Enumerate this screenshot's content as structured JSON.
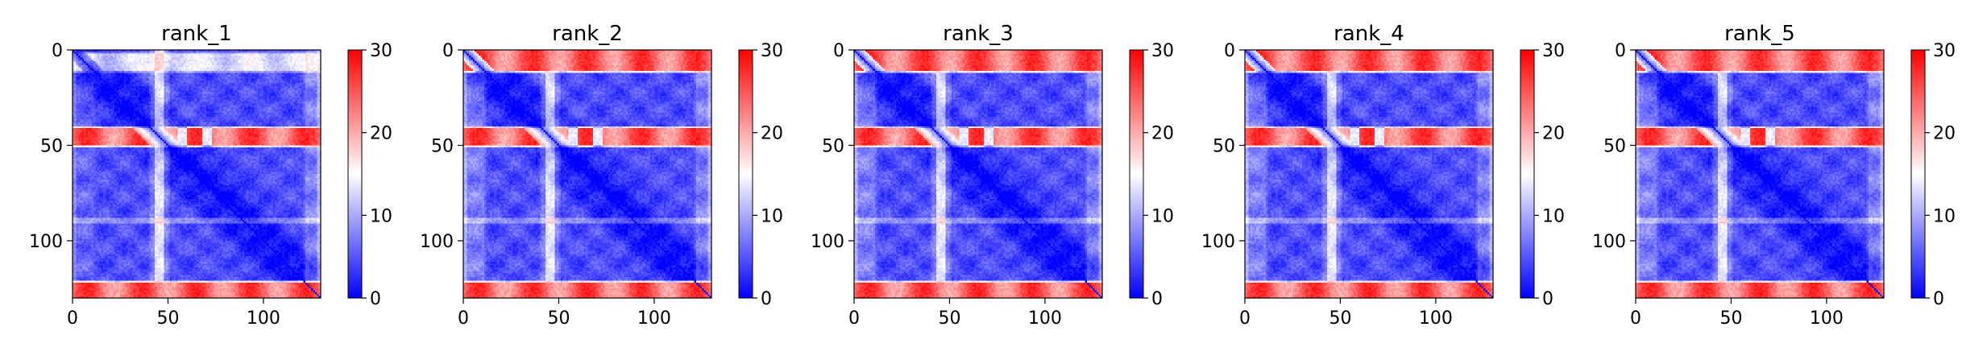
{
  "chart_data": [
    {
      "type": "heatmap",
      "title": "rank_1",
      "size": 130,
      "xticks": [
        "0",
        "50",
        "100"
      ],
      "yticks": [
        "0",
        "50",
        "100"
      ],
      "colorbar": {
        "range": [
          0,
          30
        ],
        "ticks": [
          "0",
          "10",
          "20",
          "30"
        ],
        "colormap": "bwr",
        "low_color": "#0000ff",
        "mid_color": "#ffffff",
        "high_color": "#ff0000"
      },
      "features": {
        "top_band_rows": [
          2,
          10
        ],
        "top_band_strength": 0.45,
        "mid_band_rows": [
          41,
          49
        ],
        "bottom_band_rows": [
          122,
          130
        ],
        "light_column": 45,
        "light_row": 89,
        "diagonal": "0 along the diagonal"
      }
    },
    {
      "type": "heatmap",
      "title": "rank_2",
      "size": 130,
      "xticks": [
        "0",
        "50",
        "100"
      ],
      "yticks": [
        "0",
        "50",
        "100"
      ],
      "colorbar": {
        "range": [
          0,
          30
        ],
        "ticks": [
          "0",
          "10",
          "20",
          "30"
        ],
        "colormap": "bwr",
        "low_color": "#0000ff",
        "mid_color": "#ffffff",
        "high_color": "#ff0000"
      },
      "features": {
        "top_band_rows": [
          0,
          10
        ],
        "top_band_strength": 1.0,
        "mid_band_rows": [
          41,
          49
        ],
        "bottom_band_rows": [
          122,
          130
        ],
        "light_column": 45,
        "light_row": 89,
        "diagonal": "0 along the diagonal"
      }
    },
    {
      "type": "heatmap",
      "title": "rank_3",
      "size": 130,
      "xticks": [
        "0",
        "50",
        "100"
      ],
      "yticks": [
        "0",
        "50",
        "100"
      ],
      "colorbar": {
        "range": [
          0,
          30
        ],
        "ticks": [
          "0",
          "10",
          "20",
          "30"
        ],
        "colormap": "bwr",
        "low_color": "#0000ff",
        "mid_color": "#ffffff",
        "high_color": "#ff0000"
      },
      "features": {
        "top_band_rows": [
          0,
          10
        ],
        "top_band_strength": 1.0,
        "mid_band_rows": [
          41,
          49
        ],
        "bottom_band_rows": [
          122,
          130
        ],
        "light_column": 45,
        "light_row": 89,
        "diagonal": "0 along the diagonal"
      }
    },
    {
      "type": "heatmap",
      "title": "rank_4",
      "size": 130,
      "xticks": [
        "0",
        "50",
        "100"
      ],
      "yticks": [
        "0",
        "50",
        "100"
      ],
      "colorbar": {
        "range": [
          0,
          30
        ],
        "ticks": [
          "0",
          "10",
          "20",
          "30"
        ],
        "colormap": "bwr",
        "low_color": "#0000ff",
        "mid_color": "#ffffff",
        "high_color": "#ff0000"
      },
      "features": {
        "top_band_rows": [
          0,
          10
        ],
        "top_band_strength": 1.0,
        "mid_band_rows": [
          41,
          49
        ],
        "bottom_band_rows": [
          122,
          130
        ],
        "light_column": 45,
        "light_row": 89,
        "diagonal": "0 along the diagonal"
      }
    },
    {
      "type": "heatmap",
      "title": "rank_5",
      "size": 130,
      "xticks": [
        "0",
        "50",
        "100"
      ],
      "yticks": [
        "0",
        "50",
        "100"
      ],
      "colorbar": {
        "range": [
          0,
          30
        ],
        "ticks": [
          "0",
          "10",
          "20",
          "30"
        ],
        "colormap": "bwr",
        "low_color": "#0000ff",
        "mid_color": "#ffffff",
        "high_color": "#ff0000"
      },
      "features": {
        "top_band_rows": [
          0,
          10
        ],
        "top_band_strength": 1.0,
        "mid_band_rows": [
          41,
          49
        ],
        "bottom_band_rows": [
          122,
          130
        ],
        "light_column": 45,
        "light_row": 89,
        "diagonal": "0 along the diagonal"
      }
    }
  ]
}
